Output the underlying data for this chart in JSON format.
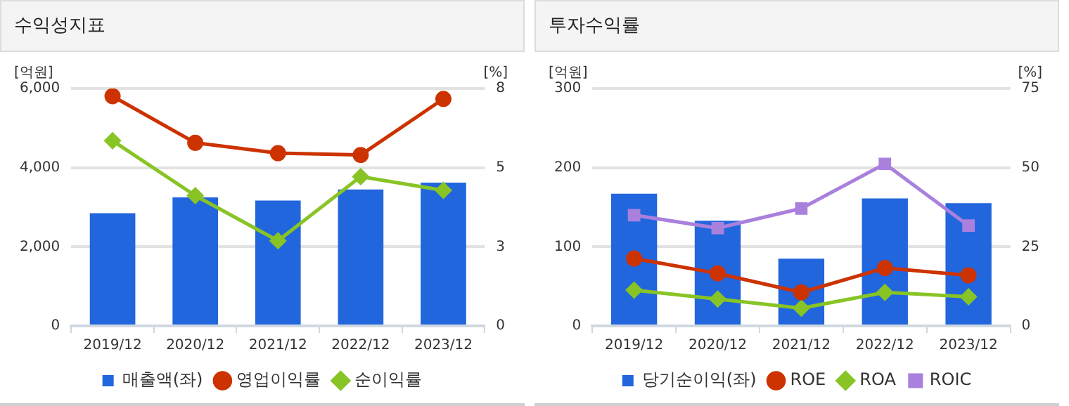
{
  "chart_data": [
    {
      "type": "bar",
      "title": "수익성지표",
      "ylabel": "[억원]",
      "y2label": "[%]",
      "categories": [
        "2019/12",
        "2020/12",
        "2021/12",
        "2022/12",
        "2023/12"
      ],
      "series": [
        {
          "name": "매출액(좌)",
          "color": "#2266dd",
          "values": [
            2850,
            3250,
            3170,
            3450,
            3620
          ]
        },
        {
          "name": "영업이익률",
          "type": "line",
          "axis": "y2",
          "marker": "circle",
          "color": "#cc3300",
          "values": [
            7.74,
            6.17,
            5.82,
            5.76,
            7.65
          ]
        },
        {
          "name": "순이익률",
          "type": "line",
          "axis": "y2",
          "marker": "diamond",
          "color": "#88c425",
          "values": [
            6.24,
            4.39,
            2.87,
            5.03,
            4.57
          ]
        }
      ],
      "ylim": [
        0,
        6000
      ],
      "yticks": [
        0,
        {
          "value": 2000,
          "label": "2,000"
        },
        {
          "value": 4000,
          "label": "4,000"
        },
        {
          "value": 6000,
          "label": "6,000"
        }
      ],
      "y2lim": [
        0,
        8
      ],
      "y2ticks": [
        0,
        {
          "value": 2.667,
          "label": "3"
        },
        {
          "value": 5.333,
          "label": "5"
        },
        8
      ],
      "grid": "y",
      "legend": "bottom"
    },
    {
      "type": "bar",
      "title": "투자수익률",
      "ylabel": "[억원]",
      "y2label": "[%]",
      "categories": [
        "2019/12",
        "2020/12",
        "2021/12",
        "2022/12",
        "2023/12"
      ],
      "series": [
        {
          "name": "당기순이익(좌)",
          "color": "#2266dd",
          "values": [
            167,
            133,
            85,
            161,
            155
          ]
        },
        {
          "name": "ROE",
          "type": "line",
          "axis": "y2",
          "marker": "circle",
          "color": "#cc3300",
          "values": [
            21.3,
            16.6,
            10.6,
            18.3,
            16.0
          ]
        },
        {
          "name": "ROA",
          "type": "line",
          "axis": "y2",
          "marker": "diamond",
          "color": "#88c425",
          "values": [
            11.3,
            8.5,
            5.6,
            10.6,
            9.2
          ]
        },
        {
          "name": "ROIC",
          "type": "line",
          "axis": "y2",
          "marker": "square",
          "color": "#aa80dd",
          "values": [
            35.0,
            30.9,
            37.1,
            51.2,
            31.7
          ]
        }
      ],
      "ylim": [
        0,
        300
      ],
      "yticks": [
        0,
        100,
        200,
        300
      ],
      "y2lim": [
        0,
        75
      ],
      "y2ticks": [
        0,
        25,
        50,
        75
      ],
      "grid": "y",
      "legend": "bottom"
    }
  ]
}
